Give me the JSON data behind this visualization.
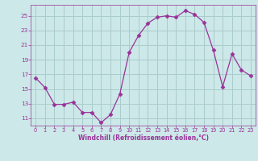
{
  "x": [
    0,
    1,
    2,
    3,
    4,
    5,
    6,
    7,
    8,
    9,
    10,
    11,
    12,
    13,
    14,
    15,
    16,
    17,
    18,
    19,
    20,
    21,
    22,
    23
  ],
  "y": [
    16.5,
    15.2,
    12.9,
    12.9,
    13.2,
    11.8,
    11.8,
    10.4,
    11.5,
    14.3,
    20.0,
    22.3,
    24.0,
    24.8,
    25.0,
    24.8,
    25.7,
    25.2,
    24.1,
    20.3,
    15.3,
    19.8,
    17.6,
    16.8
  ],
  "line_color": "#993399",
  "marker": "D",
  "marker_size": 2.5,
  "bg_color": "#cce8e8",
  "grid_color": "#aacccc",
  "xlabel": "Windchill (Refroidissement éolien,°C)",
  "xlabel_color": "#993399",
  "tick_color": "#993399",
  "yticks": [
    11,
    13,
    15,
    17,
    19,
    21,
    23,
    25
  ],
  "xticks": [
    0,
    1,
    2,
    3,
    4,
    5,
    6,
    7,
    8,
    9,
    10,
    11,
    12,
    13,
    14,
    15,
    16,
    17,
    18,
    19,
    20,
    21,
    22,
    23
  ],
  "ylim": [
    10.0,
    26.5
  ],
  "xlim": [
    -0.5,
    23.5
  ]
}
